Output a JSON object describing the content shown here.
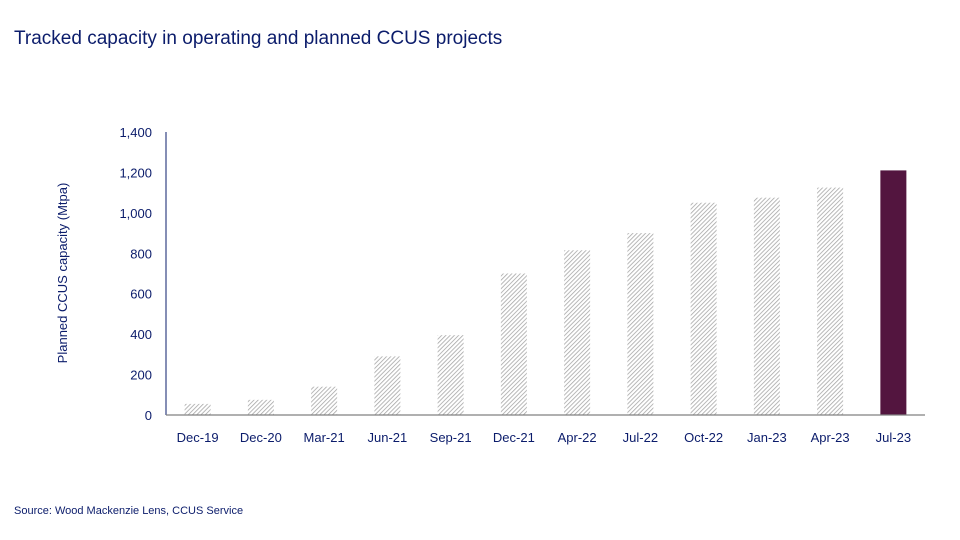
{
  "title": "Tracked capacity in operating and planned CCUS projects",
  "source": "Source: Wood Mackenzie Lens, CCUS Service",
  "chart_data": {
    "type": "bar",
    "title": "Tracked capacity in operating and planned CCUS projects",
    "xlabel": "",
    "ylabel": "Planned CCUS capacity (Mtpa)",
    "ylim": [
      0,
      1400
    ],
    "yticks": [
      0,
      200,
      400,
      600,
      800,
      1000,
      1200,
      1400
    ],
    "ytick_labels": [
      "0",
      "200",
      "400",
      "600",
      "800",
      "1,000",
      "1,200",
      "1,400"
    ],
    "grid": false,
    "categories": [
      "Dec-19",
      "Dec-20",
      "Mar-21",
      "Jun-21",
      "Sep-21",
      "Dec-21",
      "Apr-22",
      "Jul-22",
      "Oct-22",
      "Jan-23",
      "Apr-23",
      "Jul-23"
    ],
    "values": [
      55,
      75,
      140,
      290,
      395,
      700,
      815,
      900,
      1050,
      1075,
      1125,
      1210
    ],
    "colors": {
      "hatched": "#a6a6a6",
      "highlight": "#53153f",
      "axis": "#0b1c6b",
      "baseline": "#808080"
    }
  }
}
